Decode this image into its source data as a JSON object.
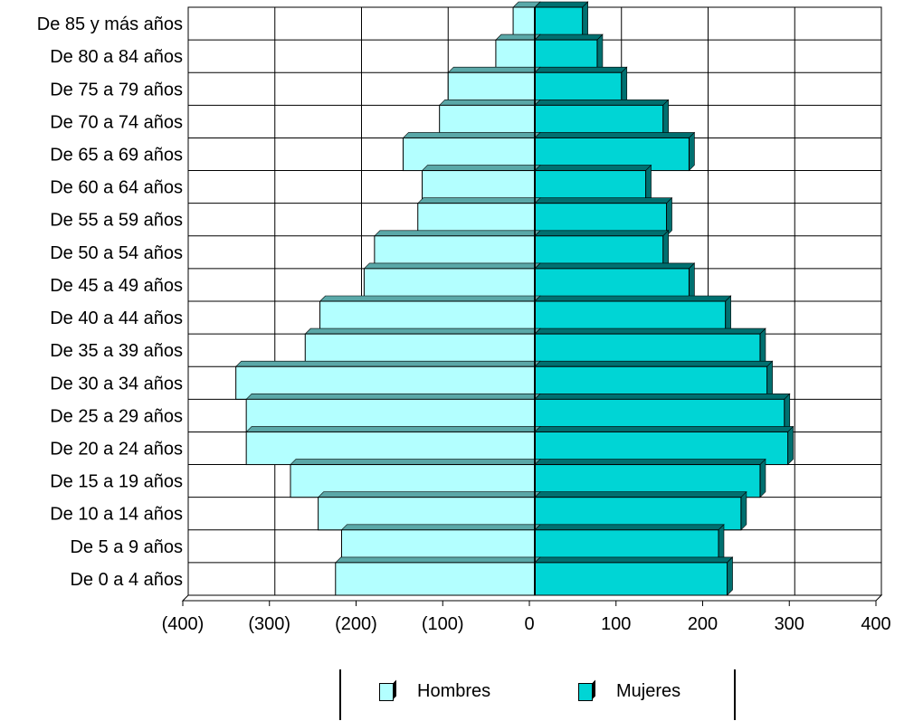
{
  "chart_data": {
    "type": "bar",
    "orientation": "horizontal",
    "categories": [
      "De 0 a 4 años",
      "De 5 a 9 años",
      "De 10 a 14 años",
      "De 15 a 19 años",
      "De 20 a 24 años",
      "De 25 a 29 años",
      "De 30 a 34 años",
      "De 35 a 39 años",
      "De 40 a 44 años",
      "De 45 a 49 años",
      "De 50 a 54 años",
      "De 55 a 59 años",
      "De 60 a 64 años",
      "De 65 a 69 años",
      "De 70 a 74 años",
      "De 75 a 79 años",
      "De 80 a 84 años",
      "De 85 y más años"
    ],
    "series": [
      {
        "name": "Hombres",
        "color": "#b3ffff",
        "values": [
          -230,
          -223,
          -250,
          -282,
          -333,
          -333,
          -345,
          -265,
          -248,
          -197,
          -185,
          -135,
          -130,
          -152,
          -110,
          -100,
          -45,
          -25
        ]
      },
      {
        "name": "Mujeres",
        "color": "#00d5d5",
        "values": [
          222,
          212,
          238,
          260,
          292,
          288,
          268,
          260,
          220,
          178,
          148,
          152,
          128,
          178,
          148,
          100,
          72,
          55
        ]
      }
    ],
    "xlim": [
      -400,
      400
    ],
    "xticks": [
      -400,
      -300,
      -200,
      -100,
      0,
      100,
      200,
      300,
      400
    ],
    "xtick_labels": [
      "(400)",
      "(300)",
      "(200)",
      "(100)",
      "0",
      "100",
      "200",
      "300",
      "400"
    ],
    "grid": true,
    "legend_position": "bottom",
    "title": "",
    "xlabel": "",
    "ylabel": ""
  }
}
